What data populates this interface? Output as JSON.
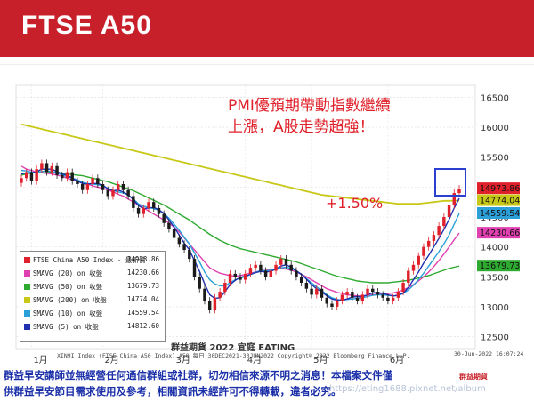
{
  "title": "FTSE A50",
  "headline": {
    "line1": "PMI優預期帶動指數繼續",
    "line2": "上漲，A股走勢超強！",
    "change": "+1.50%",
    "color": "#e0202a"
  },
  "colors": {
    "up": "#e0202a",
    "down": "#1b1b1b",
    "box": "#2b3fd0",
    "title_bar": "#c8202a",
    "disclaimer": "#1a2fa8"
  },
  "chart_data": {
    "type": "line",
    "title": "",
    "xlabel": "",
    "ylabel": "",
    "x_ticks": [
      "1月",
      "2月",
      "3月",
      "4月",
      "5月",
      "6月"
    ],
    "ylim": [
      12300,
      16700
    ],
    "y_ticks": [
      12500,
      13000,
      13500,
      14000,
      14500,
      15000,
      15500,
      16000,
      16500
    ],
    "y_tick_labels": [
      "12500",
      "13000",
      "13500",
      "14000",
      "14500",
      "15000",
      "15500",
      "16000",
      "16500"
    ],
    "grid": true,
    "legend_position": "bottom-left",
    "series": [
      {
        "name": "FTSE China A50 Index - 最新價",
        "color": "#e0202a",
        "values": [
          15150,
          15250,
          15100,
          15300,
          15400,
          15250,
          15350,
          15200,
          15150,
          15250,
          15100,
          15050,
          14950,
          15050,
          15150,
          15050,
          14950,
          14850,
          14950,
          15050,
          14950,
          14850,
          14650,
          14550,
          14650,
          14750,
          14650,
          14550,
          14400,
          14300,
          14150,
          14050,
          13950,
          13800,
          13500,
          13300,
          13100,
          12950,
          13150,
          13250,
          13400,
          13550,
          13500,
          13450,
          13550,
          13650,
          13700,
          13600,
          13500,
          13600,
          13700,
          13800,
          13700,
          13600,
          13500,
          13400,
          13300,
          13200,
          13300,
          13150,
          13050,
          13000,
          13100,
          13200,
          13250,
          13150,
          13100,
          13200,
          13300,
          13250,
          13200,
          13150,
          13100,
          13150,
          13250,
          13400,
          13600,
          13700,
          13850,
          14000,
          14100,
          14200,
          14350,
          14500,
          14700,
          14900,
          14973.86
        ]
      },
      {
        "name": "SMAVG (20)  on 收盤",
        "color": "#e040b0",
        "values": [
          15350,
          15300,
          15280,
          15250,
          15240,
          15230,
          15220,
          15200,
          15180,
          15150,
          15120,
          15100,
          15080,
          15050,
          15020,
          15000,
          14980,
          14950,
          14920,
          14880,
          14850,
          14800,
          14750,
          14700,
          14650,
          14600,
          14550,
          14500,
          14450,
          14400,
          14330,
          14250,
          14150,
          14050,
          13950,
          13850,
          13750,
          13650,
          13600,
          13560,
          13540,
          13520,
          13510,
          13520,
          13540,
          13560,
          13580,
          13600,
          13610,
          13620,
          13630,
          13640,
          13630,
          13610,
          13580,
          13540,
          13500,
          13450,
          13400,
          13350,
          13300,
          13270,
          13240,
          13220,
          13200,
          13190,
          13180,
          13180,
          13190,
          13200,
          13210,
          13220,
          13220,
          13230,
          13250,
          13280,
          13320,
          13370,
          13430,
          13500,
          13580,
          13670,
          13770,
          13880,
          14000,
          14120,
          14230.66
        ]
      },
      {
        "name": "SMAVG (50)  on 收盤",
        "color": "#2eaa30",
        "values": [
          15200,
          15220,
          15240,
          15250,
          15260,
          15260,
          15250,
          15240,
          15230,
          15220,
          15210,
          15200,
          15190,
          15170,
          15150,
          15130,
          15110,
          15090,
          15060,
          15030,
          15000,
          14970,
          14940,
          14900,
          14860,
          14820,
          14780,
          14740,
          14700,
          14650,
          14600,
          14550,
          14500,
          14450,
          14390,
          14330,
          14270,
          14210,
          14160,
          14110,
          14070,
          14030,
          14000,
          13970,
          13950,
          13930,
          13910,
          13890,
          13870,
          13850,
          13830,
          13810,
          13790,
          13770,
          13750,
          13720,
          13690,
          13660,
          13630,
          13600,
          13570,
          13540,
          13510,
          13490,
          13470,
          13450,
          13430,
          13420,
          13410,
          13400,
          13400,
          13400,
          13400,
          13410,
          13420,
          13430,
          13440,
          13460,
          13480,
          13500,
          13520,
          13550,
          13580,
          13610,
          13640,
          13660,
          13679.73
        ]
      },
      {
        "name": "SMAVG (200)  on 收盤",
        "color": "#c8c818",
        "values": [
          16050,
          16030,
          16010,
          15990,
          15970,
          15950,
          15930,
          15910,
          15890,
          15870,
          15850,
          15830,
          15810,
          15790,
          15770,
          15750,
          15730,
          15710,
          15690,
          15670,
          15650,
          15630,
          15610,
          15590,
          15570,
          15550,
          15530,
          15510,
          15490,
          15470,
          15450,
          15430,
          15410,
          15390,
          15370,
          15350,
          15330,
          15310,
          15290,
          15270,
          15250,
          15230,
          15210,
          15190,
          15170,
          15150,
          15130,
          15110,
          15090,
          15070,
          15050,
          15030,
          15010,
          14990,
          14970,
          14950,
          14930,
          14910,
          14890,
          14870,
          14860,
          14850,
          14840,
          14830,
          14820,
          14810,
          14800,
          14790,
          14780,
          14770,
          14760,
          14750,
          14740,
          14730,
          14720,
          14720,
          14720,
          14720,
          14720,
          14730,
          14740,
          14750,
          14760,
          14770,
          14770,
          14774,
          14774.04
        ]
      },
      {
        "name": "SMAVG (10)  on 收盤",
        "color": "#2a9fd8",
        "values": [
          15280,
          15270,
          15250,
          15240,
          15260,
          15270,
          15260,
          15240,
          15200,
          15180,
          15150,
          15120,
          15080,
          15060,
          15050,
          15040,
          15020,
          14980,
          14940,
          14920,
          14900,
          14870,
          14800,
          14720,
          14680,
          14660,
          14640,
          14610,
          14560,
          14480,
          14380,
          14280,
          14160,
          14050,
          13900,
          13750,
          13580,
          13450,
          13380,
          13350,
          13350,
          13400,
          13450,
          13480,
          13500,
          13540,
          13580,
          13600,
          13600,
          13610,
          13630,
          13650,
          13660,
          13640,
          13600,
          13540,
          13470,
          13400,
          13330,
          13270,
          13200,
          13150,
          13120,
          13110,
          13120,
          13130,
          13140,
          13150,
          13170,
          13190,
          13200,
          13200,
          13190,
          13180,
          13190,
          13220,
          13280,
          13360,
          13450,
          13560,
          13680,
          13800,
          13920,
          14050,
          14200,
          14380,
          14559.54
        ]
      },
      {
        "name": "SMAVG (5)  on 收盤",
        "color": "#2030b0",
        "values": [
          15220,
          15240,
          15230,
          15260,
          15300,
          15300,
          15300,
          15260,
          15220,
          15200,
          15150,
          15100,
          15060,
          15050,
          15060,
          15060,
          15030,
          14970,
          14940,
          14950,
          14920,
          14870,
          14790,
          14690,
          14640,
          14650,
          14660,
          14620,
          14560,
          14450,
          14330,
          14200,
          14060,
          13950,
          13770,
          13590,
          13380,
          13200,
          13140,
          13150,
          13250,
          13370,
          13440,
          13490,
          13510,
          13540,
          13570,
          13590,
          13580,
          13590,
          13630,
          13680,
          13700,
          13660,
          13600,
          13540,
          13460,
          13370,
          13300,
          13250,
          13180,
          13130,
          13110,
          13110,
          13130,
          13160,
          13170,
          13170,
          13200,
          13230,
          13240,
          13220,
          13200,
          13180,
          13190,
          13230,
          13320,
          13450,
          13580,
          13730,
          13860,
          14000,
          14140,
          14290,
          14460,
          14650,
          14812.6
        ]
      }
    ],
    "price_labels": [
      {
        "text": "14973.86",
        "value": 14973.86,
        "color": "#e0202a"
      },
      {
        "text": "14774.04",
        "value": 14774.04,
        "color": "#c8c818"
      },
      {
        "text": "14559.54",
        "value": 14559.54,
        "color": "#2a9fd8"
      },
      {
        "text": "14230.66",
        "value": 14230.66,
        "color": "#e040b0"
      },
      {
        "text": "13679.73",
        "value": 13679.73,
        "color": "#2eaa30"
      }
    ]
  },
  "legend": {
    "entries": [
      {
        "name": "FTSE China A50 Index - 最新價",
        "value": "14973.86",
        "color": "#e0202a"
      },
      {
        "name": "SMAVG (20)  on 收盤",
        "value": "14230.66",
        "color": "#e040b0"
      },
      {
        "name": "SMAVG (50)  on 收盤",
        "value": "13679.73",
        "color": "#2eaa30"
      },
      {
        "name": "SMAVG (200)  on 收盤",
        "value": "14774.04",
        "color": "#c8c818"
      },
      {
        "name": "SMAVG (10)  on 收盤",
        "value": "14559.54",
        "color": "#2a9fd8"
      },
      {
        "name": "SMAVG (5)  on 收盤",
        "value": "14812.60",
        "color": "#2030b0"
      }
    ]
  },
  "source_line": "XIN9I Index (FTSE China A50 Index) A50  每日 30DEC2021-30JUN2022    Copyright© 2022 Bloomberg Finance L.P.",
  "date_stamp": "30-Jun-2022 16:07:24",
  "watermark_text": "群益期貨  2022  宜庭 EATING",
  "disclaimer": {
    "line1": "群益早安講師並無經營任何通信群組或社群，切勿相信來源不明之消息！本檔案文件僅",
    "line2": "供群益早安節目需求使用及參考，相關資訊未經許可不得轉載，違者必究。"
  },
  "watermark_url": "https://eting1688.pixnet.net/album",
  "logo_text": "群益期貨"
}
